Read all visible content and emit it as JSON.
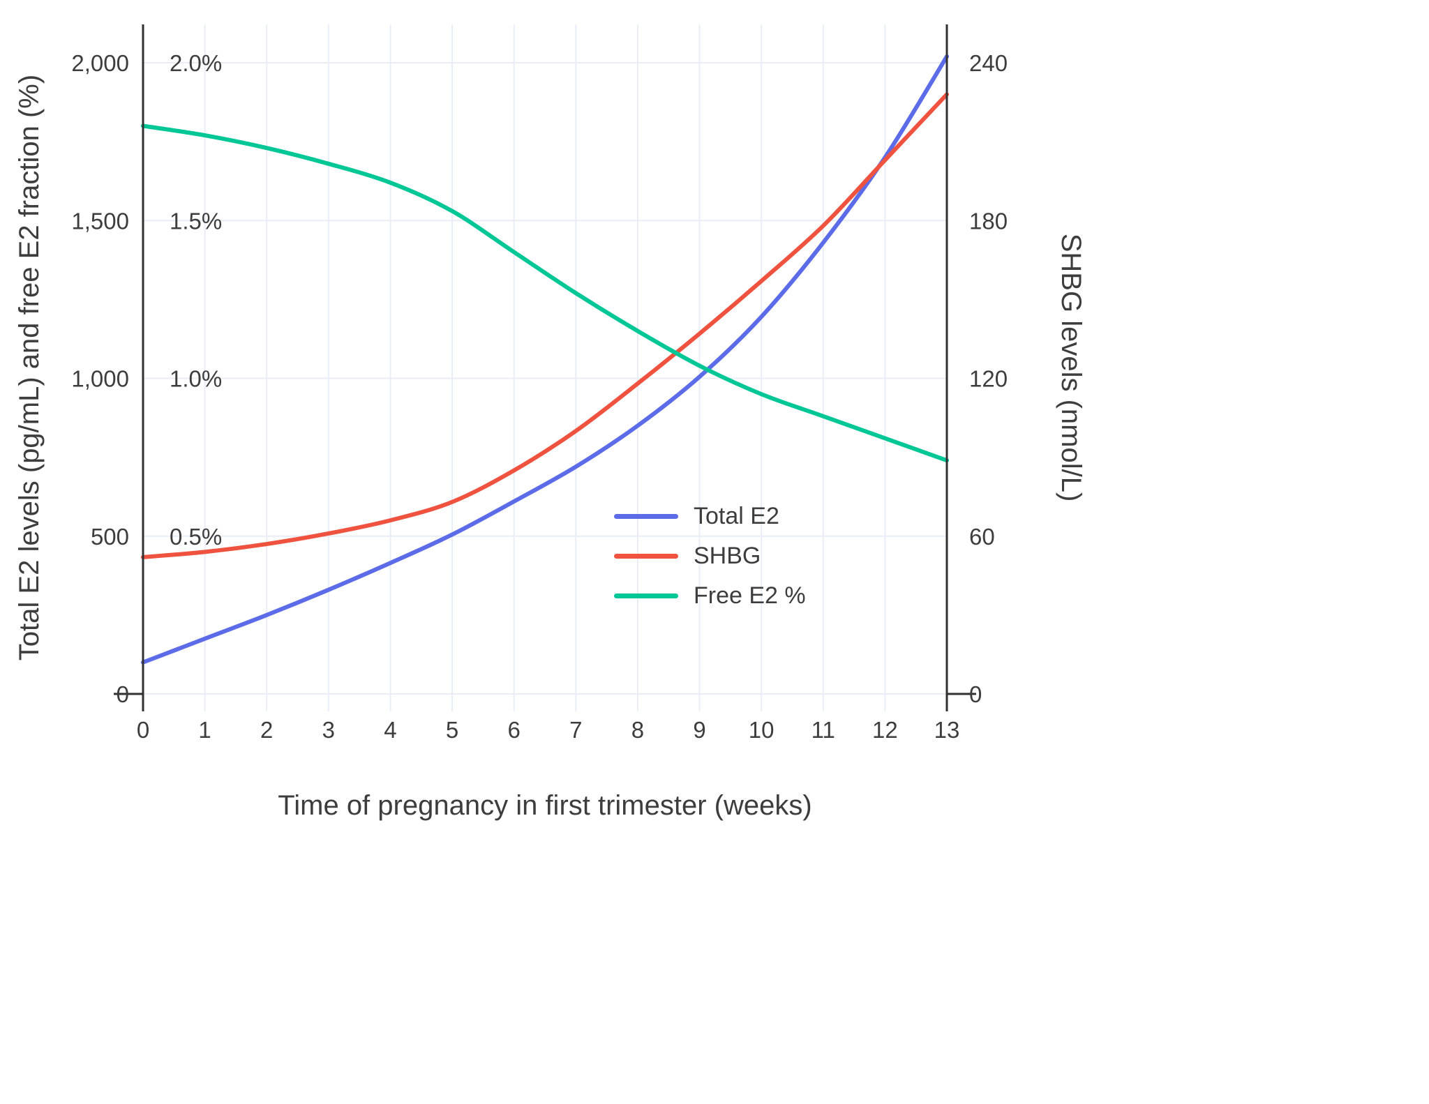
{
  "chart_data": {
    "type": "line",
    "title": "",
    "xlabel": "Time of pregnancy in first trimester (weeks)",
    "ylabel_left": "Total E2 levels (pg/mL) and free E2 fraction (%)",
    "ylabel_right": "SHBG levels (nmol/L)",
    "x": [
      0,
      1,
      2,
      3,
      4,
      5,
      6,
      7,
      8,
      9,
      10,
      11,
      12,
      13
    ],
    "xlim": [
      0,
      13
    ],
    "ylim_left": [
      0,
      2000
    ],
    "ylim_right": [
      0,
      240
    ],
    "grid": true,
    "legend_position": "inside-right",
    "x_ticks": [
      "0",
      "1",
      "2",
      "3",
      "4",
      "5",
      "6",
      "7",
      "8",
      "9",
      "10",
      "11",
      "12",
      "13"
    ],
    "y_ticks_left": [
      {
        "value": 0,
        "label": "0"
      },
      {
        "value": 500,
        "label": "500"
      },
      {
        "value": 1000,
        "label": "1,000"
      },
      {
        "value": 1500,
        "label": "1,500"
      },
      {
        "value": 2000,
        "label": "2,000"
      }
    ],
    "y_ticks_right": [
      {
        "value": 0,
        "label": "0"
      },
      {
        "value": 60,
        "label": "60"
      },
      {
        "value": 120,
        "label": "120"
      },
      {
        "value": 180,
        "label": "180"
      },
      {
        "value": 240,
        "label": "240"
      }
    ],
    "percent_annotations": [
      {
        "value_pct": 0.5,
        "label": "0.5%"
      },
      {
        "value_pct": 1.0,
        "label": "1.0%"
      },
      {
        "value_pct": 1.5,
        "label": "1.5%"
      },
      {
        "value_pct": 2.0,
        "label": "2.0%"
      }
    ],
    "series": [
      {
        "name": "Total E2",
        "axis": "left",
        "units": "pg/mL",
        "color": "#5c6ce8",
        "values": [
          100,
          175,
          250,
          330,
          415,
          505,
          610,
          720,
          850,
          1005,
          1195,
          1430,
          1700,
          2020
        ]
      },
      {
        "name": "SHBG",
        "axis": "right",
        "units": "nmol/L",
        "color": "#ef5340",
        "values": [
          52,
          54,
          57,
          61,
          66,
          73,
          85,
          100,
          118,
          137,
          157,
          178,
          203,
          228
        ]
      },
      {
        "name": "Free E2 %",
        "axis": "percent",
        "units": "%",
        "color": "#00c795",
        "values": [
          1.8,
          1.77,
          1.73,
          1.68,
          1.62,
          1.53,
          1.4,
          1.27,
          1.15,
          1.04,
          0.95,
          0.88,
          0.81,
          0.74
        ]
      }
    ],
    "colors": {
      "grid": "#e8edf6",
      "axis_line": "#303030",
      "text": "#3d3d3d",
      "background": "#ffffff"
    }
  }
}
